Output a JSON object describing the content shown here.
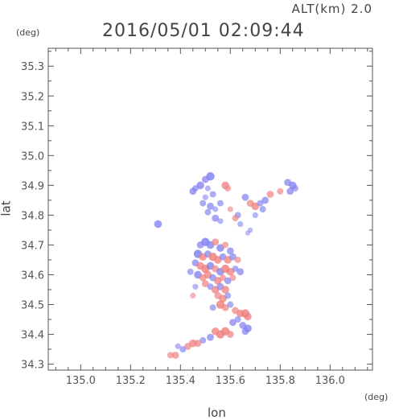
{
  "header": {
    "altitude": "ALT(km) 2.0",
    "timestamp": "2016/05/01 02:09:44"
  },
  "chart_data": {
    "type": "scatter",
    "title": "2016/05/01 02:09:44",
    "subtitle": "ALT(km) 2.0",
    "xlabel": "lon",
    "ylabel": "lat",
    "x_unit": "(deg)",
    "y_unit": "(deg)",
    "xlim": [
      134.87,
      136.17
    ],
    "ylim": [
      34.28,
      35.36
    ],
    "xticks": [
      "135.0",
      "135.2",
      "135.4",
      "135.6",
      "135.8",
      "136.0"
    ],
    "yticks": [
      "34.3",
      "34.4",
      "34.5",
      "34.6",
      "34.7",
      "34.8",
      "34.9",
      "35.0",
      "35.1",
      "35.2",
      "35.3"
    ],
    "grid": false,
    "colors": {
      "positive": "#f08080",
      "negative": "#8080f0",
      "neutral": "#e8e8f4",
      "frame": "#555555"
    },
    "series": [
      {
        "values": [
          [
            135.52,
            34.93,
            0.8,
            0
          ],
          [
            135.5,
            34.92,
            0.6,
            0
          ],
          [
            135.48,
            34.9,
            0.7,
            0
          ],
          [
            135.46,
            34.89,
            0.5,
            0
          ],
          [
            135.45,
            34.88,
            0.6,
            0
          ],
          [
            135.51,
            34.89,
            0.4,
            0
          ],
          [
            135.53,
            34.87,
            0.5,
            0
          ],
          [
            135.5,
            34.86,
            0.4,
            0
          ],
          [
            135.49,
            34.84,
            0.5,
            0
          ],
          [
            135.52,
            34.83,
            0.6,
            0
          ],
          [
            135.54,
            34.82,
            0.4,
            0
          ],
          [
            135.51,
            34.81,
            0.5,
            0
          ],
          [
            135.54,
            34.79,
            0.6,
            0
          ],
          [
            135.56,
            34.78,
            0.4,
            0
          ],
          [
            135.58,
            34.9,
            0.7,
            1
          ],
          [
            135.59,
            34.89,
            0.5,
            1
          ],
          [
            135.56,
            34.84,
            0.5,
            0
          ],
          [
            135.6,
            34.82,
            0.4,
            1
          ],
          [
            135.63,
            34.8,
            0.5,
            0
          ],
          [
            135.62,
            34.79,
            0.5,
            1
          ],
          [
            135.64,
            34.77,
            0.4,
            0
          ],
          [
            135.66,
            34.86,
            0.6,
            0
          ],
          [
            135.68,
            34.84,
            0.6,
            1
          ],
          [
            135.7,
            34.83,
            0.7,
            1
          ],
          [
            135.72,
            34.84,
            0.5,
            0
          ],
          [
            135.74,
            34.85,
            0.6,
            0
          ],
          [
            135.73,
            34.82,
            0.5,
            0
          ],
          [
            135.7,
            34.8,
            0.4,
            0
          ],
          [
            135.67,
            34.74,
            0.3,
            0
          ],
          [
            135.68,
            34.75,
            0.3,
            0
          ],
          [
            135.76,
            34.87,
            0.6,
            1
          ],
          [
            135.8,
            34.88,
            0.5,
            1
          ],
          [
            135.83,
            34.91,
            0.6,
            0
          ],
          [
            135.85,
            34.9,
            0.7,
            0
          ],
          [
            135.84,
            34.88,
            0.6,
            0
          ],
          [
            135.86,
            34.89,
            0.5,
            0
          ],
          [
            135.31,
            34.77,
            0.7,
            0
          ],
          [
            135.48,
            34.7,
            0.6,
            0
          ],
          [
            135.5,
            34.71,
            0.8,
            0
          ],
          [
            135.52,
            34.7,
            0.7,
            0
          ],
          [
            135.54,
            34.71,
            0.6,
            1
          ],
          [
            135.56,
            34.69,
            0.7,
            0
          ],
          [
            135.58,
            34.7,
            0.5,
            1
          ],
          [
            135.6,
            34.68,
            0.6,
            0
          ],
          [
            135.47,
            34.67,
            0.8,
            0
          ],
          [
            135.49,
            34.66,
            0.7,
            1
          ],
          [
            135.51,
            34.67,
            0.6,
            0
          ],
          [
            135.53,
            34.66,
            0.8,
            1
          ],
          [
            135.55,
            34.65,
            0.7,
            1
          ],
          [
            135.57,
            34.66,
            0.6,
            0
          ],
          [
            135.59,
            34.65,
            0.7,
            1
          ],
          [
            135.61,
            34.66,
            0.6,
            0
          ],
          [
            135.63,
            34.65,
            0.5,
            1
          ],
          [
            135.46,
            34.64,
            0.6,
            0
          ],
          [
            135.48,
            34.63,
            0.7,
            1
          ],
          [
            135.5,
            34.62,
            0.8,
            1
          ],
          [
            135.52,
            34.63,
            0.7,
            0
          ],
          [
            135.54,
            34.62,
            0.6,
            1
          ],
          [
            135.56,
            34.61,
            0.7,
            0
          ],
          [
            135.58,
            34.62,
            0.8,
            1
          ],
          [
            135.6,
            34.61,
            0.7,
            1
          ],
          [
            135.62,
            34.62,
            0.5,
            0
          ],
          [
            135.64,
            34.61,
            0.6,
            0
          ],
          [
            135.44,
            34.61,
            0.5,
            0
          ],
          [
            135.47,
            34.6,
            0.7,
            0
          ],
          [
            135.49,
            34.59,
            0.6,
            1
          ],
          [
            135.51,
            34.6,
            0.7,
            1
          ],
          [
            135.53,
            34.59,
            0.6,
            0
          ],
          [
            135.55,
            34.58,
            0.7,
            1
          ],
          [
            135.57,
            34.59,
            0.5,
            1
          ],
          [
            135.59,
            34.58,
            0.6,
            0
          ],
          [
            135.61,
            34.59,
            0.5,
            1
          ],
          [
            135.5,
            34.57,
            0.6,
            1
          ],
          [
            135.52,
            34.56,
            0.5,
            0
          ],
          [
            135.54,
            34.55,
            0.7,
            1
          ],
          [
            135.56,
            34.56,
            0.6,
            0
          ],
          [
            135.58,
            34.55,
            0.7,
            1
          ],
          [
            135.55,
            34.53,
            0.6,
            1
          ],
          [
            135.57,
            34.52,
            0.7,
            1
          ],
          [
            135.59,
            34.53,
            0.5,
            0
          ],
          [
            135.56,
            34.5,
            0.8,
            1
          ],
          [
            135.58,
            34.49,
            0.6,
            1
          ],
          [
            135.6,
            34.5,
            0.5,
            0
          ],
          [
            135.53,
            34.49,
            0.5,
            0
          ],
          [
            135.62,
            34.48,
            0.6,
            1
          ],
          [
            135.64,
            34.47,
            0.7,
            1
          ],
          [
            135.66,
            34.47,
            0.8,
            1
          ],
          [
            135.67,
            34.46,
            0.7,
            1
          ],
          [
            135.63,
            34.45,
            0.5,
            0
          ],
          [
            135.61,
            34.44,
            0.6,
            0
          ],
          [
            135.65,
            34.43,
            0.6,
            0
          ],
          [
            135.67,
            34.42,
            0.7,
            0
          ],
          [
            135.66,
            34.41,
            0.6,
            0
          ],
          [
            135.58,
            34.41,
            0.8,
            1
          ],
          [
            135.56,
            34.4,
            0.8,
            1
          ],
          [
            135.54,
            34.41,
            0.7,
            1
          ],
          [
            135.6,
            34.4,
            0.6,
            1
          ],
          [
            135.52,
            34.39,
            0.6,
            0
          ],
          [
            135.49,
            34.38,
            0.5,
            0
          ],
          [
            135.47,
            34.37,
            0.6,
            1
          ],
          [
            135.45,
            34.37,
            0.7,
            1
          ],
          [
            135.43,
            34.36,
            0.6,
            1
          ],
          [
            135.41,
            34.35,
            0.5,
            0
          ],
          [
            135.39,
            34.36,
            0.4,
            0
          ],
          [
            135.38,
            34.33,
            0.6,
            1
          ],
          [
            135.36,
            34.33,
            0.5,
            1
          ],
          [
            135.46,
            34.56,
            0.4,
            0
          ],
          [
            135.45,
            34.53,
            0.4,
            1
          ]
        ]
      }
    ]
  }
}
